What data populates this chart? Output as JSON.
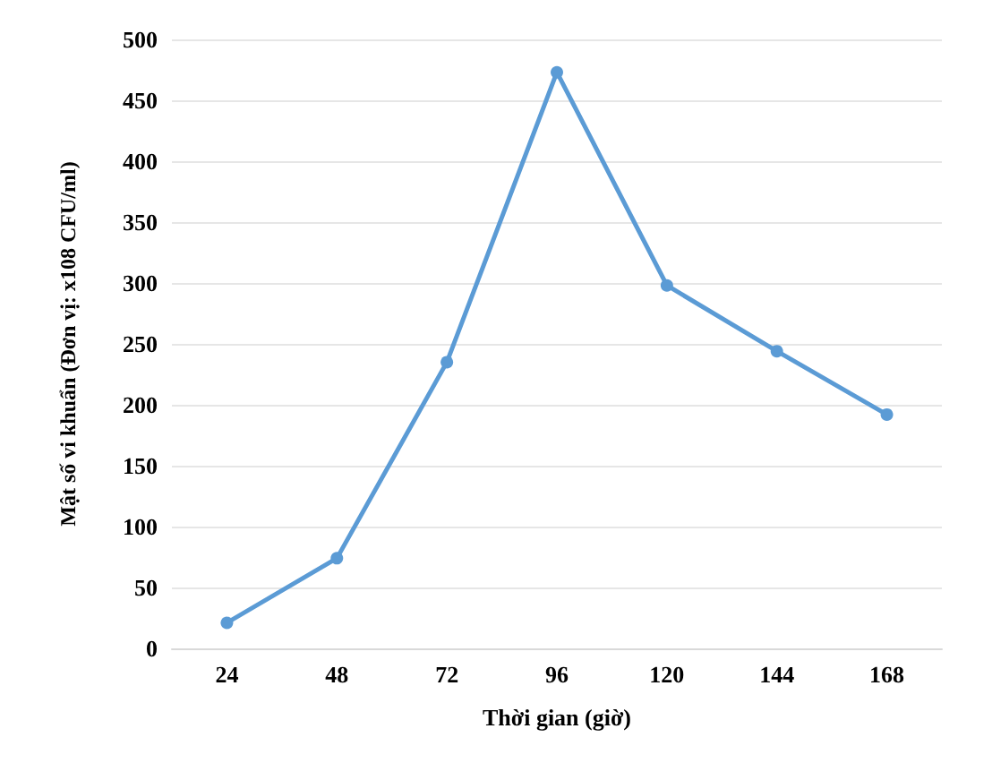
{
  "chart_data": {
    "type": "line",
    "xlabel": "Thời gian (giờ)",
    "ylabel": "Mật số vi khuẩn (Đơn vị: x108 CFU/ml)",
    "categories": [
      "24",
      "48",
      "72",
      "96",
      "120",
      "144",
      "168"
    ],
    "series": [
      {
        "color": "#5b9bd5",
        "values": [
          21,
          74,
          235,
          473,
          298,
          244,
          192
        ]
      }
    ],
    "ylim": [
      0,
      500
    ],
    "yticks": [
      0,
      50,
      100,
      150,
      200,
      250,
      300,
      350,
      400,
      450,
      500
    ],
    "grid": "y",
    "marker": "circle",
    "line_style": "solid"
  }
}
